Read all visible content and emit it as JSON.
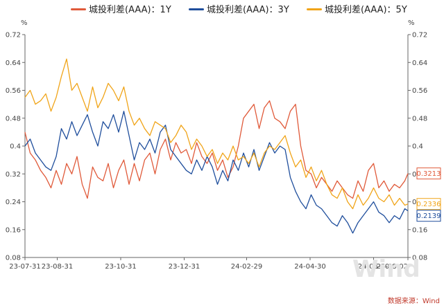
{
  "chart_data": {
    "type": "line",
    "title": "",
    "left_unit": "%",
    "right_unit": "%",
    "ylim": [
      0.08,
      0.72
    ],
    "y_ticks": [
      "0.08",
      "0.16",
      "0.24",
      "0.32",
      "0.4",
      "0.48",
      "0.56",
      "0.64",
      "0.72"
    ],
    "x_tick_labels": [
      "23-07-31",
      "23-08-31",
      "23-10-31",
      "23-12-31",
      "24-02-29",
      "24-04-30",
      "24-06-30",
      "24-08-02"
    ],
    "x_ticks": [
      0,
      31,
      92,
      153,
      213,
      274,
      335,
      368
    ],
    "grid": false,
    "legend_position": "top",
    "source": "数据来源：Wind",
    "watermark": "Wind",
    "series": [
      {
        "name": "城投利差(AAA)：1Y",
        "color": "#e05a3a",
        "end_label": "0.3213",
        "x": [
          0,
          5,
          10,
          15,
          20,
          25,
          30,
          35,
          40,
          45,
          50,
          55,
          60,
          65,
          70,
          75,
          80,
          85,
          90,
          95,
          100,
          105,
          110,
          115,
          120,
          125,
          130,
          135,
          140,
          145,
          150,
          155,
          160,
          165,
          170,
          175,
          180,
          185,
          190,
          195,
          200,
          205,
          210,
          215,
          220,
          225,
          230,
          235,
          240,
          245,
          250,
          255,
          260,
          265,
          270,
          275,
          280,
          285,
          290,
          295,
          300,
          305,
          310,
          315,
          320,
          325,
          330,
          335,
          340,
          345,
          350,
          355,
          360,
          365,
          368
        ],
        "y": [
          0.44,
          0.38,
          0.36,
          0.33,
          0.31,
          0.28,
          0.33,
          0.29,
          0.35,
          0.32,
          0.37,
          0.29,
          0.25,
          0.34,
          0.31,
          0.3,
          0.35,
          0.28,
          0.33,
          0.36,
          0.29,
          0.35,
          0.3,
          0.36,
          0.38,
          0.32,
          0.39,
          0.42,
          0.36,
          0.41,
          0.38,
          0.39,
          0.35,
          0.41,
          0.37,
          0.35,
          0.38,
          0.33,
          0.36,
          0.31,
          0.34,
          0.4,
          0.48,
          0.5,
          0.52,
          0.45,
          0.51,
          0.53,
          0.48,
          0.47,
          0.45,
          0.5,
          0.52,
          0.4,
          0.33,
          0.32,
          0.28,
          0.31,
          0.29,
          0.27,
          0.3,
          0.28,
          0.26,
          0.25,
          0.3,
          0.27,
          0.33,
          0.35,
          0.28,
          0.3,
          0.27,
          0.29,
          0.28,
          0.3,
          0.3213
        ]
      },
      {
        "name": "城投利差(AAA)：3Y",
        "color": "#1f4e9c",
        "end_label": "0.2139",
        "x": [
          0,
          5,
          10,
          15,
          20,
          25,
          30,
          35,
          40,
          45,
          50,
          55,
          60,
          65,
          70,
          75,
          80,
          85,
          90,
          95,
          100,
          105,
          110,
          115,
          120,
          125,
          130,
          135,
          140,
          145,
          150,
          155,
          160,
          165,
          170,
          175,
          180,
          185,
          190,
          195,
          200,
          205,
          210,
          215,
          220,
          225,
          230,
          235,
          240,
          245,
          250,
          255,
          260,
          265,
          270,
          275,
          280,
          285,
          290,
          295,
          300,
          305,
          310,
          315,
          320,
          325,
          330,
          335,
          340,
          345,
          350,
          355,
          360,
          365,
          368
        ],
        "y": [
          0.4,
          0.42,
          0.38,
          0.36,
          0.34,
          0.33,
          0.37,
          0.45,
          0.42,
          0.47,
          0.43,
          0.46,
          0.49,
          0.44,
          0.4,
          0.47,
          0.45,
          0.49,
          0.44,
          0.5,
          0.43,
          0.36,
          0.41,
          0.39,
          0.42,
          0.38,
          0.44,
          0.46,
          0.39,
          0.37,
          0.35,
          0.33,
          0.32,
          0.36,
          0.33,
          0.37,
          0.34,
          0.29,
          0.33,
          0.3,
          0.36,
          0.33,
          0.38,
          0.34,
          0.39,
          0.33,
          0.37,
          0.41,
          0.38,
          0.4,
          0.39,
          0.31,
          0.27,
          0.24,
          0.22,
          0.26,
          0.23,
          0.22,
          0.2,
          0.18,
          0.17,
          0.2,
          0.18,
          0.15,
          0.18,
          0.2,
          0.22,
          0.24,
          0.21,
          0.2,
          0.18,
          0.2,
          0.19,
          0.22,
          0.2139
        ]
      },
      {
        "name": "城投利差(AAA)：5Y",
        "color": "#f0a418",
        "end_label": "0.2336",
        "x": [
          0,
          5,
          10,
          15,
          20,
          25,
          30,
          35,
          40,
          45,
          50,
          55,
          60,
          65,
          70,
          75,
          80,
          85,
          90,
          95,
          100,
          105,
          110,
          115,
          120,
          125,
          130,
          135,
          140,
          145,
          150,
          155,
          160,
          165,
          170,
          175,
          180,
          185,
          190,
          195,
          200,
          205,
          210,
          215,
          220,
          225,
          230,
          235,
          240,
          245,
          250,
          255,
          260,
          265,
          270,
          275,
          280,
          285,
          290,
          295,
          300,
          305,
          310,
          315,
          320,
          325,
          330,
          335,
          340,
          345,
          350,
          355,
          360,
          365,
          368
        ],
        "y": [
          0.54,
          0.56,
          0.52,
          0.53,
          0.55,
          0.5,
          0.54,
          0.6,
          0.65,
          0.56,
          0.58,
          0.54,
          0.5,
          0.57,
          0.51,
          0.54,
          0.58,
          0.56,
          0.53,
          0.57,
          0.5,
          0.46,
          0.48,
          0.45,
          0.43,
          0.47,
          0.46,
          0.45,
          0.41,
          0.43,
          0.46,
          0.44,
          0.39,
          0.42,
          0.4,
          0.37,
          0.39,
          0.35,
          0.38,
          0.36,
          0.4,
          0.36,
          0.37,
          0.35,
          0.38,
          0.34,
          0.38,
          0.4,
          0.39,
          0.41,
          0.43,
          0.38,
          0.34,
          0.36,
          0.31,
          0.34,
          0.3,
          0.33,
          0.29,
          0.26,
          0.25,
          0.28,
          0.24,
          0.22,
          0.26,
          0.23,
          0.25,
          0.28,
          0.25,
          0.24,
          0.26,
          0.23,
          0.25,
          0.23,
          0.2336
        ]
      }
    ]
  }
}
